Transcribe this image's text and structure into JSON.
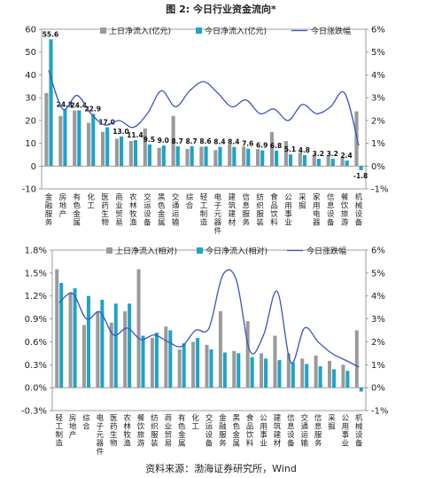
{
  "page": {
    "title": "图 2:  今日行业资金流向*",
    "source": "资料来源：渤海证券研究所，Wind"
  },
  "colors": {
    "bar_a": "#9a9a9a",
    "bar_b": "#1fa3c6",
    "line": "#3a55c0"
  },
  "chart_data": [
    {
      "type": "bar",
      "legend_placement": "top",
      "categories": [
        "金融服务",
        "房地产",
        "有色金属",
        "化工",
        "医药生物",
        "商业贸易",
        "农林牧渔",
        "交运设备",
        "黑色金属",
        "交通运输",
        "综合",
        "轻工制造",
        "电子元器件",
        "建筑建材",
        "信息服务",
        "纺织服装",
        "食品饮料",
        "公用事业",
        "采掘",
        "家用电器",
        "信息设备",
        "餐饮旅游",
        "机械设备"
      ],
      "y_left": {
        "range": [
          -10,
          60
        ],
        "ticks": [
          "-10",
          "0",
          "10",
          "20",
          "30",
          "40",
          "50",
          "60"
        ]
      },
      "y_right": {
        "range": [
          -1,
          6
        ],
        "ticks": [
          "-1%",
          "0%",
          "1%",
          "2%",
          "3%",
          "4%",
          "5%",
          "6%"
        ]
      },
      "series": [
        {
          "name": "上日净流入(亿元)",
          "axis": "left",
          "values": [
            32,
            22,
            24.4,
            19,
            15,
            12,
            11,
            16.5,
            8,
            22,
            7.5,
            8.5,
            7,
            9.5,
            8.5,
            7.5,
            15,
            11,
            6,
            5,
            4.5,
            4,
            24
          ]
        },
        {
          "name": "今日净流入(亿元)",
          "axis": "left",
          "values": [
            55.6,
            24.8,
            24.4,
            22.9,
            17.0,
            13.0,
            11.4,
            9.5,
            9.0,
            8.7,
            8.7,
            8.6,
            8.4,
            8.4,
            7.6,
            6.9,
            6.8,
            5.1,
            4.8,
            3.2,
            3.2,
            2.4,
            -1.8
          ]
        },
        {
          "name": "今日涨跌幅",
          "axis": "right",
          "type": "line",
          "values": [
            4.2,
            2.5,
            3.1,
            2.3,
            1.8,
            2.0,
            1.7,
            2.3,
            3.3,
            2.6,
            3.3,
            3.7,
            3.2,
            2.6,
            2.9,
            2.3,
            2.5,
            2.0,
            2.7,
            2.3,
            2.6,
            3.2,
            0.9
          ]
        }
      ],
      "data_labels": [
        "55.6",
        "24.8",
        "24.4",
        "22.9",
        "17.0",
        "13.0",
        "11.4",
        "9.5",
        "9.0",
        "8.7",
        "8.7",
        "8.6",
        "8.4",
        "8.4",
        "7.6",
        "6.9",
        "6.8",
        "5.1",
        "4.8",
        "3.2",
        "3.2",
        "2.4",
        "-1.8"
      ]
    },
    {
      "type": "bar",
      "legend_placement": "top",
      "categories": [
        "轻工制造",
        "房地产",
        "综合",
        "电子元器件",
        "医药生物",
        "农林牧渔",
        "餐饮旅游",
        "纺织服装",
        "商业贸易",
        "有色金属",
        "化工",
        "交运设备",
        "金融服务",
        "黑色金属",
        "食品饮料",
        "公用事业",
        "建筑建材",
        "信息设备",
        "交通运输",
        "信息服务",
        "采掘",
        "公用事业",
        "机械设备"
      ],
      "y_left": {
        "range": [
          -0.3,
          1.8
        ],
        "ticks": [
          "-0.3%",
          "0.0%",
          "0.3%",
          "0.6%",
          "0.9%",
          "1.2%",
          "1.5%",
          "1.8%"
        ]
      },
      "y_right": {
        "range": [
          -1,
          6
        ],
        "ticks": [
          "-1%",
          "0%",
          "1%",
          "2%",
          "3%",
          "4%",
          "5%",
          "6%"
        ]
      },
      "series": [
        {
          "name": "上日净流入(相对)",
          "axis": "left",
          "values": [
            1.55,
            1.25,
            0.82,
            1.0,
            0.85,
            1.0,
            1.55,
            0.65,
            0.8,
            0.5,
            0.6,
            0.56,
            1.0,
            0.48,
            0.87,
            0.45,
            0.68,
            0.45,
            0.38,
            0.42,
            0.35,
            0.3,
            0.75
          ]
        },
        {
          "name": "今日净流入(相对)",
          "axis": "left",
          "values": [
            1.37,
            1.3,
            1.2,
            1.15,
            1.1,
            1.1,
            0.68,
            0.72,
            0.75,
            0.58,
            0.65,
            0.5,
            0.46,
            0.45,
            0.4,
            0.38,
            0.36,
            0.33,
            0.31,
            0.28,
            0.24,
            0.22,
            -0.05
          ]
        },
        {
          "name": "今日涨跌幅",
          "axis": "right",
          "type": "line",
          "values": [
            3.7,
            4.1,
            3.0,
            3.3,
            2.3,
            2.6,
            2.1,
            2.3,
            2.0,
            1.8,
            2.5,
            2.6,
            4.9,
            4.7,
            1.6,
            2.3,
            4.2,
            1.1,
            2.6,
            2.0,
            1.5,
            1.2,
            0.9
          ]
        }
      ]
    }
  ]
}
